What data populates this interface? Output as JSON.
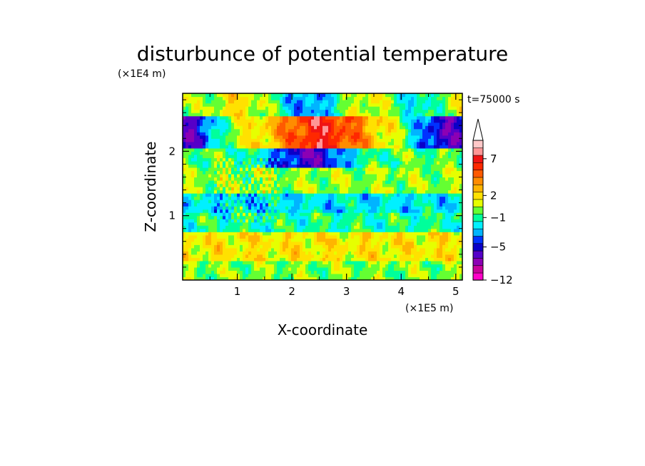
{
  "chart_data": {
    "type": "heatmap",
    "title": "disturbunce of potential temperature",
    "time_label": "t=75000 s",
    "xlabel": "X-coordinate",
    "ylabel": "Z-coordinate",
    "x_unit": "(×1E5 m)",
    "y_unit": "(×1E4 m)",
    "x_ticks": [
      "1",
      "2",
      "3",
      "4",
      "5"
    ],
    "y_ticks": [
      "1",
      "2"
    ],
    "x_tick_values": [
      1,
      2,
      3,
      4,
      5
    ],
    "y_tick_values": [
      1,
      2
    ],
    "xlim": [
      0,
      5.12
    ],
    "ylim": [
      0,
      2.9
    ],
    "colorbar": {
      "ticks": [
        "7",
        "2",
        "−1",
        "−5",
        "−12"
      ],
      "tick_values": [
        7,
        2,
        -1,
        -5,
        -12
      ],
      "levels": [
        -12,
        -10,
        -8,
        -6,
        -5,
        -4,
        -3,
        -2,
        -1,
        0,
        1,
        2,
        3,
        4,
        5,
        6,
        7,
        8,
        9
      ],
      "colors": [
        "#ff00c8",
        "#c8009b",
        "#8c00b4",
        "#5500c8",
        "#0a00c8",
        "#0032ff",
        "#00b4ff",
        "#00f0ff",
        "#00ff9b",
        "#64ff32",
        "#e6ff00",
        "#ffe100",
        "#ffb400",
        "#ff8c00",
        "#ff5a00",
        "#ff2800",
        "#f01414",
        "#ff9696",
        "#ffc8c8"
      ],
      "extend": "max",
      "extend_color": "#ffffff"
    },
    "field_description": [
      {
        "z_range": [
          0,
          0.35
        ],
        "dominant": "yellow-green (0 to 2)"
      },
      {
        "z_range": [
          0.35,
          0.75
        ],
        "dominant": "yellow/orange (2 to 4)"
      },
      {
        "z_range": [
          0.75,
          1.35
        ],
        "dominant": "green/cyan (-2 to 0)"
      },
      {
        "z_range": [
          1.35,
          1.75
        ],
        "dominant": "yellow/green"
      },
      {
        "z_range": [
          1.75,
          2.0
        ],
        "dominant": "blue (-5) near x=2-3"
      },
      {
        "z_range": [
          2.0,
          2.6
        ],
        "dominant": "orange/red (4 to 7) near x=2-3, dark blue/purple (-6 to -5) near x=0 and x=5"
      },
      {
        "z_range": [
          2.6,
          2.9
        ],
        "dominant": "blue (-4) near x=2-3, orange/green elsewhere"
      }
    ]
  }
}
